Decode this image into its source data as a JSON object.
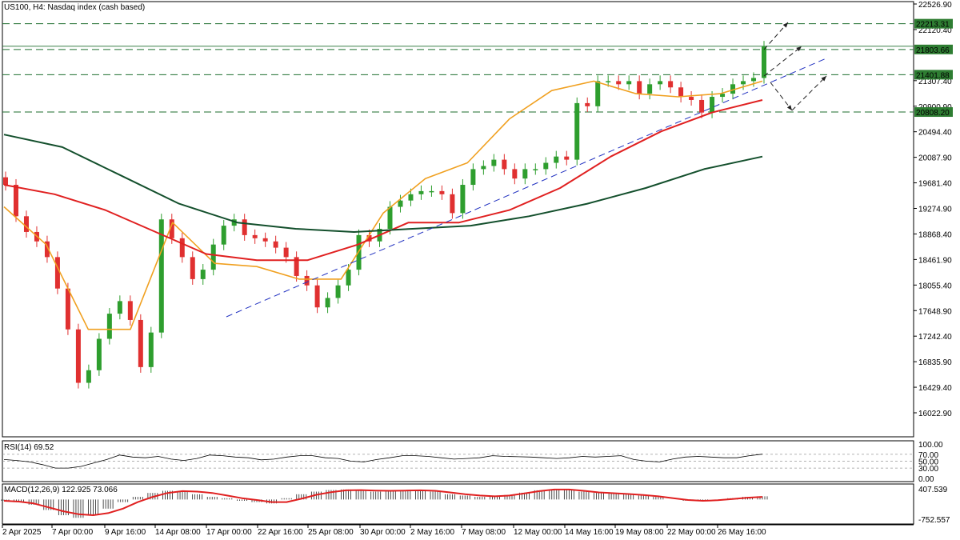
{
  "header": {
    "title": "US100, H4:  Nasdaq index (cash based)",
    "rsi_label": "RSI(14) 69.52",
    "macd_label": "MACD(12,26,9) 122.925 73.066"
  },
  "colors": {
    "bull": "#2e9e2e",
    "bear": "#e03030",
    "ma_fast": "#f0a020",
    "ma_mid": "#e02020",
    "ma_slow": "#134f2c",
    "trendline": "#2030c0",
    "level_line": "#1e6e2e",
    "level_box": "#2e7d32"
  },
  "chart_data": [
    {
      "type": "candlestick",
      "symbol": "US100",
      "timeframe": "H4",
      "title": "US100, H4:  Nasdaq index (cash based)",
      "y_ticks": [
        "22526.90",
        "22120.40",
        "21307.40",
        "20900.90",
        "20494.40",
        "20087.90",
        "19681.40",
        "19274.90",
        "18868.40",
        "18461.90",
        "18055.40",
        "17648.90",
        "17242.40",
        "16835.90",
        "16429.40",
        "16022.90"
      ],
      "x_ticks": [
        "2 Apr 2025",
        "7 Apr 00:00",
        "9 Apr 16:00",
        "14 Apr 08:00",
        "17 Apr 00:00",
        "22 Apr 16:00",
        "25 Apr 08:00",
        "30 Apr 00:00",
        "2 May 16:00",
        "7 May 08:00",
        "12 May 00:00",
        "14 May 16:00",
        "19 May 08:00",
        "22 May 00:00",
        "26 May 16:00"
      ],
      "ylim": [
        15800,
        22600
      ],
      "levels": [
        {
          "value": 22213.31,
          "label": "22213.31"
        },
        {
          "value": 21803.66,
          "label": "21803.66"
        },
        {
          "value": 21401.88,
          "label": "21401.88"
        },
        {
          "value": 20808.2,
          "label": "20808.20"
        }
      ],
      "series": [
        {
          "name": "Close",
          "values": [
            19650,
            19150,
            18900,
            18750,
            18500,
            18000,
            17350,
            16500,
            16700,
            17200,
            17600,
            17800,
            17500,
            16750,
            17300,
            19100,
            18800,
            18500,
            18150,
            18300,
            18700,
            19000,
            19100,
            18850,
            18800,
            18750,
            18650,
            18500,
            18200,
            18050,
            17700,
            17850,
            18050,
            18300,
            18850,
            18750,
            18950,
            19300,
            19400,
            19500,
            19550,
            19550,
            19500,
            19200,
            19650,
            19900,
            19950,
            20050,
            19900,
            19750,
            19900,
            19900,
            20000,
            20100,
            20050,
            20950,
            20900,
            21300,
            21300,
            21250,
            21300,
            21100,
            21250,
            21300,
            21200,
            21050,
            21000,
            20800,
            21050,
            21100,
            21250,
            21300,
            21350,
            21850
          ]
        },
        {
          "name": "MA fast",
          "values": [
            19300,
            18700,
            17350,
            17350,
            19050,
            18400,
            18350,
            18150,
            18150,
            19200,
            19750,
            20000,
            20700,
            21150,
            21300,
            21100,
            21050,
            21100,
            21300
          ]
        },
        {
          "name": "MA mid",
          "values": [
            19650,
            19500,
            19250,
            18900,
            18550,
            18450,
            18450,
            18700,
            19050,
            19050,
            19250,
            19600,
            20100,
            20500,
            20800,
            21000
          ]
        },
        {
          "name": "MA slow",
          "values": [
            20450,
            20250,
            19800,
            19350,
            19050,
            18950,
            18900,
            18950,
            19000,
            19150,
            19350,
            19600,
            19900,
            20100
          ]
        }
      ]
    },
    {
      "type": "line",
      "name": "RSI(14)",
      "value": 69.52,
      "y_ticks": [
        "100.00",
        "70.00",
        "50.00",
        "30.00",
        "0.00"
      ],
      "ylim": [
        0,
        100
      ],
      "levels": [
        70,
        50,
        30
      ],
      "values": [
        55,
        52,
        48,
        40,
        30,
        30,
        35,
        45,
        55,
        68,
        62,
        60,
        64,
        56,
        52,
        58,
        68,
        66,
        62,
        60,
        54,
        56,
        62,
        66,
        66,
        60,
        58,
        50,
        48,
        55,
        60,
        66,
        66,
        64,
        60,
        56,
        58,
        60,
        66,
        64,
        63,
        62,
        60,
        58,
        60,
        64,
        62,
        64,
        66,
        55,
        50,
        48,
        56,
        62,
        64,
        62,
        60,
        60,
        66,
        70.5
      ]
    },
    {
      "type": "bar",
      "name": "MACD(12,26,9)",
      "main": 122.925,
      "signal": 73.066,
      "y_ticks": [
        "407.539",
        "-752.557"
      ],
      "ylim": [
        -752.557,
        407.539
      ],
      "histogram": [
        -50,
        -100,
        -200,
        -400,
        -600,
        -700,
        -600,
        -350,
        -100,
        100,
        250,
        330,
        300,
        200,
        100,
        50,
        -50,
        -100,
        -150,
        50,
        200,
        300,
        360,
        380,
        350,
        300,
        330,
        350,
        360,
        300,
        200,
        150,
        100,
        120,
        170,
        260,
        350,
        390,
        380,
        300,
        250,
        230,
        200,
        150,
        100,
        0,
        -50,
        -50,
        0,
        50,
        100,
        120
      ],
      "signal_line": [
        -50,
        -80,
        -150,
        -300,
        -450,
        -560,
        -600,
        -520,
        -350,
        -100,
        100,
        250,
        320,
        300,
        250,
        150,
        50,
        -20,
        -100,
        -100,
        30,
        180,
        280,
        350,
        360,
        340,
        330,
        340,
        350,
        330,
        270,
        200,
        150,
        120,
        150,
        230,
        320,
        380,
        380,
        330,
        270,
        240,
        210,
        170,
        120,
        50,
        -20,
        -50,
        -30,
        20,
        70,
        100
      ]
    }
  ]
}
